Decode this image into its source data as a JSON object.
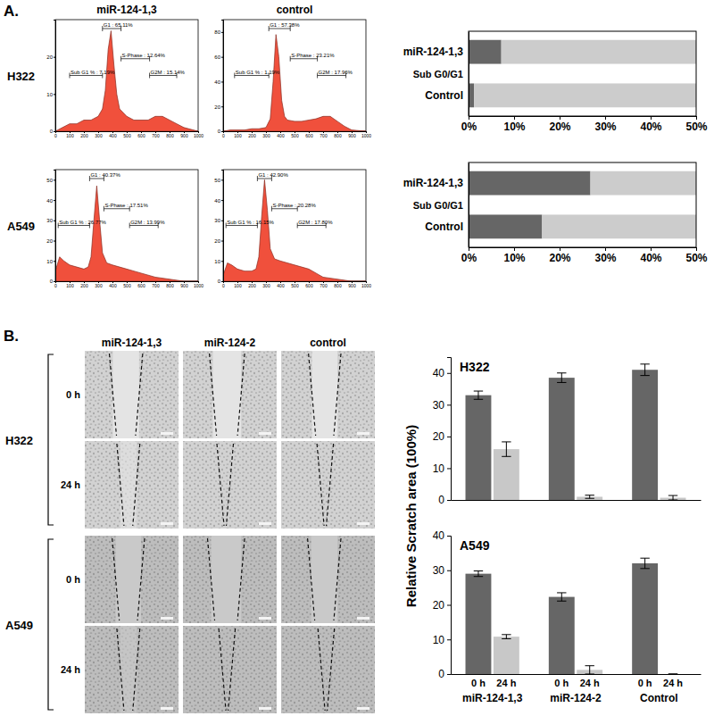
{
  "figure": {
    "panel_labels": [
      "A.",
      "B."
    ],
    "flow_columns": [
      "miR-124-1,3",
      "control"
    ],
    "flow_rows": [
      "H322",
      "A549"
    ],
    "scratch_columns": [
      "miR-124-1,3",
      "miR-124-2",
      "control"
    ],
    "scratch_rows": [
      "H322",
      "A549"
    ],
    "scratch_times": [
      "0 h",
      "24 h"
    ]
  },
  "chart_data": [
    {
      "type": "area",
      "color": "#f0503c",
      "x": [
        0,
        50,
        100,
        150,
        200,
        250,
        300,
        330,
        350,
        370,
        390,
        410,
        430,
        450,
        500,
        550,
        600,
        650,
        700,
        750,
        800,
        850,
        900,
        1000
      ],
      "values": [
        0,
        1,
        2,
        2,
        3,
        3,
        4,
        6,
        11,
        22,
        27,
        18,
        10,
        6,
        4,
        3,
        3,
        3,
        4,
        4,
        3,
        2,
        1,
        0
      ],
      "xlim": [
        0,
        1000
      ],
      "xticks": [
        0,
        100,
        200,
        300,
        400,
        500,
        600,
        700,
        800,
        900,
        1000
      ],
      "ylim": [
        0,
        30
      ],
      "yticks": [
        0,
        10,
        20
      ],
      "gates": [
        {
          "label": "Sub G1 % : 7.19%",
          "range": [
            100,
            330
          ]
        },
        {
          "label": "G1 : 65.11%",
          "range": [
            330,
            460
          ]
        },
        {
          "label": "S-Phase : 12.64%",
          "range": [
            460,
            660
          ]
        },
        {
          "label": "G2M : 15.14%",
          "range": [
            660,
            850
          ]
        }
      ]
    },
    {
      "type": "area",
      "color": "#f0503c",
      "x": [
        0,
        50,
        100,
        150,
        200,
        250,
        300,
        330,
        350,
        370,
        390,
        410,
        430,
        450,
        500,
        550,
        600,
        650,
        700,
        750,
        800,
        850,
        900,
        1000
      ],
      "values": [
        0,
        1,
        1,
        1,
        2,
        2,
        3,
        10,
        40,
        78,
        60,
        25,
        12,
        9,
        8,
        8,
        9,
        10,
        12,
        12,
        8,
        4,
        1,
        0
      ],
      "xlim": [
        0,
        1000
      ],
      "xticks": [
        0,
        100,
        200,
        300,
        400,
        500,
        600,
        700,
        800,
        900,
        1000
      ],
      "ylim": [
        0,
        90
      ],
      "yticks": [
        0,
        20,
        40,
        60,
        80
      ],
      "gates": [
        {
          "label": "Sub G1 % : 1.19%",
          "range": [
            80,
            320
          ]
        },
        {
          "label": "G1 : 57.38%",
          "range": [
            320,
            470
          ]
        },
        {
          "label": "S-Phase : 23.21%",
          "range": [
            470,
            660
          ]
        },
        {
          "label": "G2M : 17.96%",
          "range": [
            660,
            860
          ]
        }
      ]
    },
    {
      "type": "area",
      "color": "#f0503c",
      "x": [
        0,
        30,
        60,
        100,
        150,
        200,
        230,
        250,
        270,
        290,
        310,
        330,
        360,
        400,
        450,
        500,
        550,
        600,
        650,
        700,
        800,
        900,
        1000
      ],
      "values": [
        5,
        12,
        10,
        8,
        7,
        6,
        7,
        12,
        30,
        47,
        30,
        14,
        9,
        8,
        7,
        6,
        5,
        4,
        3,
        2,
        1,
        0,
        0
      ],
      "xlim": [
        0,
        1000
      ],
      "xticks": [
        0,
        100,
        200,
        300,
        400,
        500,
        600,
        700,
        800,
        900,
        1000
      ],
      "ylim": [
        0,
        55
      ],
      "yticks": [
        0,
        10,
        20,
        30,
        40,
        50
      ],
      "gates": [
        {
          "label": "Sub G1 % : 26.77%",
          "range": [
            20,
            240
          ]
        },
        {
          "label": "G1 : 40.37%",
          "range": [
            240,
            340
          ]
        },
        {
          "label": "S-Phase : 17.51%",
          "range": [
            340,
            520
          ]
        },
        {
          "label": "G2M : 13.99%",
          "range": [
            520,
            720
          ]
        }
      ]
    },
    {
      "type": "area",
      "color": "#f0503c",
      "x": [
        0,
        30,
        60,
        100,
        150,
        200,
        230,
        250,
        270,
        290,
        310,
        330,
        360,
        400,
        450,
        500,
        550,
        600,
        650,
        700,
        800,
        900,
        1000
      ],
      "values": [
        3,
        9,
        8,
        6,
        5,
        5,
        6,
        12,
        32,
        50,
        35,
        16,
        11,
        10,
        9,
        8,
        7,
        6,
        4,
        2,
        1,
        0,
        0
      ],
      "xlim": [
        0,
        1000
      ],
      "xticks": [
        0,
        100,
        200,
        300,
        400,
        500,
        600,
        700,
        800,
        900,
        1000
      ],
      "ylim": [
        0,
        55
      ],
      "yticks": [
        0,
        10,
        20,
        30,
        40,
        50
      ],
      "gates": [
        {
          "label": "Sub G1 % : 16.15%",
          "range": [
            20,
            240
          ]
        },
        {
          "label": "G1 : 42.90%",
          "range": [
            240,
            340
          ]
        },
        {
          "label": "S-Phase : 20.28%",
          "range": [
            340,
            520
          ]
        },
        {
          "label": "G2M : 17.80%",
          "range": [
            520,
            720
          ]
        }
      ]
    },
    {
      "type": "bar",
      "orientation": "horizontal",
      "stacked": true,
      "categories": [
        "miR-124-1,3",
        "Control"
      ],
      "series": [
        {
          "color": "#666666",
          "values": [
            7.19,
            1.19
          ]
        },
        {
          "color": "#cccccc",
          "values": [
            42.81,
            48.81
          ]
        }
      ],
      "annotation": "Sub G0/G1",
      "xlim": [
        0,
        50
      ],
      "xticks": [
        {
          "value": 0,
          "label": "0%"
        },
        {
          "value": 10,
          "label": "10%"
        },
        {
          "value": 20,
          "label": "20%"
        },
        {
          "value": 30,
          "label": "30%"
        },
        {
          "value": 40,
          "label": "40%"
        },
        {
          "value": 50,
          "label": "50%"
        }
      ]
    },
    {
      "type": "bar",
      "orientation": "horizontal",
      "stacked": true,
      "categories": [
        "miR-124-1,3",
        "Control"
      ],
      "series": [
        {
          "color": "#666666",
          "values": [
            26.77,
            16.15
          ]
        },
        {
          "color": "#cccccc",
          "values": [
            23.23,
            33.85
          ]
        }
      ],
      "annotation": "Sub G0/G1",
      "xlim": [
        0,
        50
      ],
      "xticks": [
        {
          "value": 0,
          "label": "0%"
        },
        {
          "value": 10,
          "label": "10%"
        },
        {
          "value": 20,
          "label": "20%"
        },
        {
          "value": 30,
          "label": "30%"
        },
        {
          "value": 40,
          "label": "40%"
        },
        {
          "value": 50,
          "label": "50%"
        }
      ]
    },
    {
      "type": "bar",
      "title": "H322",
      "tick_labels": "y",
      "series": [
        {
          "color": "#666666",
          "values": [
            33,
            38.5,
            41
          ],
          "errors": [
            1.3,
            1.5,
            1.8
          ]
        },
        {
          "color": "#c8c8c8",
          "values": [
            16,
            1,
            0.7
          ],
          "errors": [
            2.3,
            0.5,
            0.7
          ]
        }
      ],
      "ylim": [
        0,
        45
      ],
      "yticks": [
        0,
        10,
        20,
        30,
        40
      ]
    },
    {
      "type": "bar",
      "title": "A549",
      "ylabel": "Relative Scratch area (100%)",
      "categories": [
        "miR-124-1,3",
        "miR-124-2",
        "Control"
      ],
      "series": [
        {
          "name": "0 h",
          "color": "#666666",
          "values": [
            29,
            22.3,
            32
          ],
          "errors": [
            0.8,
            1.2,
            1.5
          ]
        },
        {
          "name": "24 h",
          "color": "#c8c8c8",
          "values": [
            10.8,
            1.2,
            0
          ],
          "errors": [
            0.6,
            1.2,
            0
          ]
        }
      ],
      "ylim": [
        0,
        40
      ],
      "yticks": [
        0,
        10,
        20,
        30,
        40
      ]
    }
  ]
}
